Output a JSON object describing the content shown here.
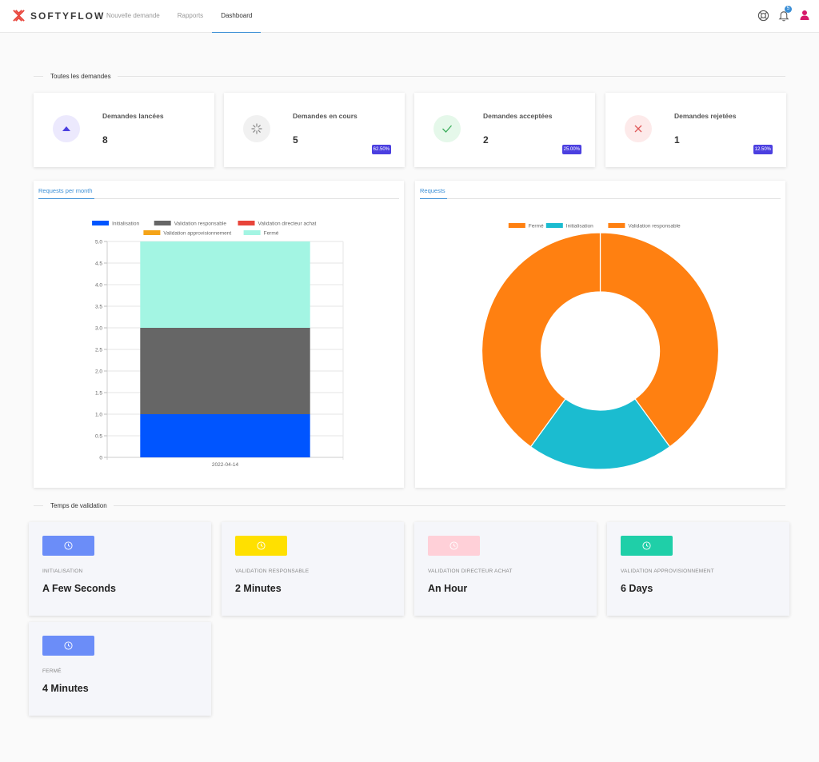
{
  "header": {
    "brand": "SOFTYFLOW",
    "nav": [
      {
        "label": "Nouvelle demande"
      },
      {
        "label": "Rapports"
      },
      {
        "label": "Dashboard"
      }
    ],
    "notification_count": "5",
    "active_tab_color": "#3b8fd6"
  },
  "sections": {
    "all_requests": "Toutes les demandes",
    "validation_time": "Temps de validation"
  },
  "stats": [
    {
      "label": "Demandes lancées",
      "value": "8",
      "pct": "",
      "icon": "triangle-up-icon",
      "color": "#4b3fe0"
    },
    {
      "label": "Demandes en cours",
      "value": "5",
      "pct": "62.50%",
      "icon": "spinner-icon",
      "color": "#888888"
    },
    {
      "label": "Demandes acceptées",
      "value": "2",
      "pct": "25.00%",
      "icon": "check-icon",
      "color": "#3cae5c"
    },
    {
      "label": "Demandes rejetées",
      "value": "1",
      "pct": "12.50%",
      "icon": "x-icon",
      "color": "#e05a5a"
    }
  ],
  "charts": {
    "bar_tab": "Requests per month",
    "pie_tab": "Requests"
  },
  "chart_data": [
    {
      "type": "bar",
      "stacked": true,
      "categories": [
        "2022-04-14"
      ],
      "series": [
        {
          "name": "Initialisation",
          "values": [
            1
          ],
          "color": "#0055ff"
        },
        {
          "name": "Validation responsable",
          "values": [
            2
          ],
          "color": "#666666"
        },
        {
          "name": "Validation directeur achat",
          "values": [
            0
          ],
          "color": "#e8443a"
        },
        {
          "name": "Validation approvisionnement",
          "values": [
            0
          ],
          "color": "#f5a418"
        },
        {
          "name": "Fermé",
          "values": [
            2
          ],
          "color": "#a3f5e3"
        }
      ],
      "ylim": [
        0,
        5
      ],
      "yticks": [
        "0",
        "0.5",
        "1.0",
        "1.5",
        "2.0",
        "2.5",
        "3.0",
        "3.5",
        "4.0",
        "4.5",
        "5.0"
      ],
      "legend": "top",
      "grid": true
    },
    {
      "type": "pie",
      "donut": true,
      "slices": [
        {
          "name": "Fermé",
          "value": 2,
          "color": "#ff8011"
        },
        {
          "name": "Initialisation",
          "value": 1,
          "color": "#1bbcd0"
        },
        {
          "name": "Validation responsable",
          "value": 2,
          "color": "#ff8011"
        }
      ],
      "legend": "top"
    }
  ],
  "validation": [
    {
      "label": "INITIALISATION",
      "value": "A Few Seconds",
      "color": "#6b8df8",
      "icon": "clock-icon"
    },
    {
      "label": "VALIDATION RESPONSABLE",
      "value": "2 Minutes",
      "color": "#ffe000",
      "icon": "clock-icon"
    },
    {
      "label": "VALIDATION DIRECTEUR ACHAT",
      "value": "An Hour",
      "color": "#ffd0d8",
      "icon": "clock-icon"
    },
    {
      "label": "VALIDATION APPROVISIONNEMENT",
      "value": "6 Days",
      "color": "#1fcfa8",
      "icon": "clock-icon"
    },
    {
      "label": "FERMÉ",
      "value": "4 Minutes",
      "color": "#6b8df8",
      "icon": "clock-icon"
    }
  ]
}
